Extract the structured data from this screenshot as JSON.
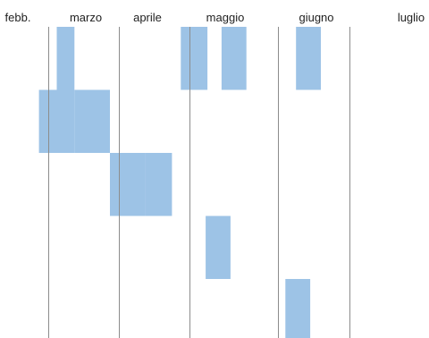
{
  "chart_data": {
    "type": "gantt",
    "months": [
      "febb.",
      "marzo",
      "aprile",
      "maggio",
      "giugno",
      "luglio"
    ],
    "x_unit": "week",
    "x_range": [
      5.3,
      29.5
    ],
    "gridline_weeks": [
      8,
      12,
      16,
      21,
      25,
      30
    ],
    "tasks": [
      {
        "bars": [
          [
            8.5,
            9.5
          ],
          [
            15.5,
            17.0
          ],
          [
            17.8,
            19.2
          ],
          [
            22.0,
            23.4
          ]
        ]
      },
      {
        "bars": [
          [
            7.5,
            9.5
          ],
          [
            9.5,
            11.5
          ]
        ]
      },
      {
        "bars": [
          [
            11.5,
            13.5
          ],
          [
            13.5,
            15.0
          ]
        ]
      },
      {
        "bars": [
          [
            16.9,
            18.3
          ]
        ]
      },
      {
        "bars": [
          [
            21.4,
            22.8
          ]
        ]
      }
    ],
    "colors": {
      "bar": "#9dc3e6",
      "bar_edge": "#8cb4d9",
      "grid": "#8c8c8c"
    }
  }
}
